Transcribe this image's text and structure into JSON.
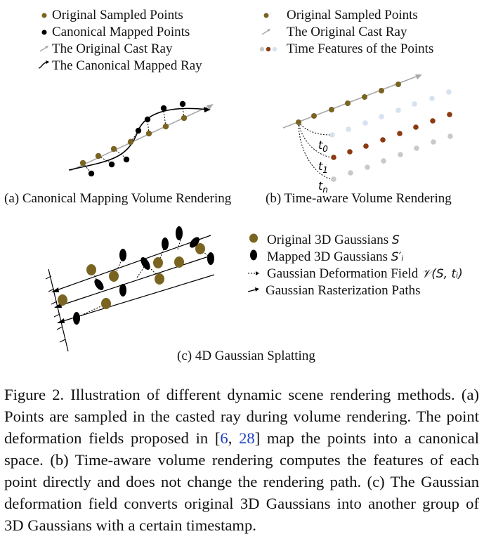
{
  "panel_a": {
    "legend": {
      "sampled": "Original Sampled Points",
      "canonical_points": "Canonical Mapped Points",
      "cast_ray": "The Original Cast Ray",
      "canonical_ray": "The Canonical Mapped Ray"
    },
    "caption": "(a) Canonical Mapping Volume Rendering"
  },
  "panel_b": {
    "legend": {
      "sampled": "Original Sampled Points",
      "cast_ray": "The Original Cast Ray",
      "time_features": "Time Features of the Points"
    },
    "t0": "t",
    "t0_sub": "0",
    "t1": "t",
    "t1_sub": "1",
    "tn": "t",
    "tn_sub": "n",
    "caption": "(b) Time-aware Volume Rendering"
  },
  "panel_c": {
    "legend": {
      "original_prefix": "Original 3D Gaussians ",
      "original_sym": "S",
      "mapped_prefix": "Mapped 3D Gaussians ",
      "mapped_sym": "S′ᵢ",
      "deform_prefix": "Gaussian Deformation Field ",
      "deform_sym": "𝒱(S, tᵢ)",
      "paths": "Gaussian Rasterization Paths"
    },
    "caption": "(c) 4D Gaussian Splatting"
  },
  "figure_caption": {
    "part1": "Figure 2. Illustration of different dynamic scene rendering methods. (a) Points are sampled in the casted ray during volume rendering. The point deformation fields proposed in [",
    "ref1": "6",
    "sep": ", ",
    "ref2": "28",
    "part2": "] map the points into a canonical space. (b) Time-aware volume rendering computes the features of each point directly and does not change the rendering path. (c) The Gaussian deformation field converts original 3D Gaussians into another group of 3D Gaussians with a certain timestamp."
  },
  "colors": {
    "olive": "#7a6421",
    "black": "#000000",
    "ray_gray": "#a8a8a8",
    "brown": "#8b3a12",
    "light_blue": "#d6e2ee",
    "gray_point": "#c9c9c9",
    "ref_blue": "#1a3fc2"
  }
}
